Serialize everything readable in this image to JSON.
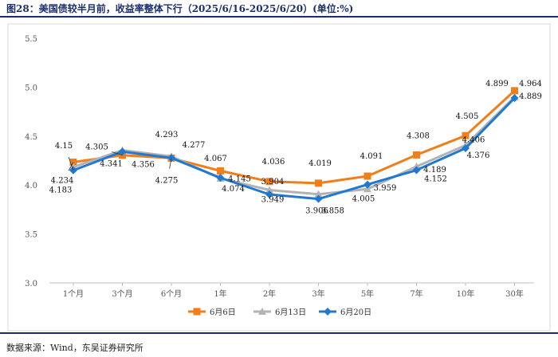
{
  "figure": {
    "title": "图28：美国债较半月前，收益率整体下行（2025/6/16-2025/6/20）(单位:%)",
    "source": "数据来源：Wind，东吴证券研究所"
  },
  "chart_data": {
    "type": "line",
    "title": "美国债较半月前，收益率整体下行（2025/6/16-2025/6/20）(单位:%)",
    "categories": [
      "1个月",
      "3个月",
      "6个月",
      "1年",
      "2年",
      "3年",
      "5年",
      "7年",
      "10年",
      "30年"
    ],
    "ylim": [
      3.0,
      5.5
    ],
    "yticks": [
      "3.0",
      "3.5",
      "4.0",
      "4.5",
      "5.0",
      "5.5"
    ],
    "grid": false,
    "legend_position": "bottom",
    "series": [
      {
        "name": "6月6日",
        "color": "#f07e1a",
        "marker": "square",
        "values": [
          4.234,
          4.305,
          4.275,
          4.145,
          4.036,
          4.019,
          4.091,
          4.308,
          4.505,
          4.964
        ]
      },
      {
        "name": "6月13日",
        "color": "#b3b3b3",
        "marker": "triangle",
        "values": [
          4.183,
          4.356,
          4.293,
          4.067,
          3.949,
          3.906,
          3.959,
          4.189,
          4.406,
          4.899
        ]
      },
      {
        "name": "6月20日",
        "color": "#1f78d1",
        "marker": "diamond",
        "values": [
          4.15,
          4.341,
          4.277,
          4.074,
          3.904,
          3.858,
          4.005,
          4.152,
          4.376,
          4.889
        ]
      }
    ]
  }
}
